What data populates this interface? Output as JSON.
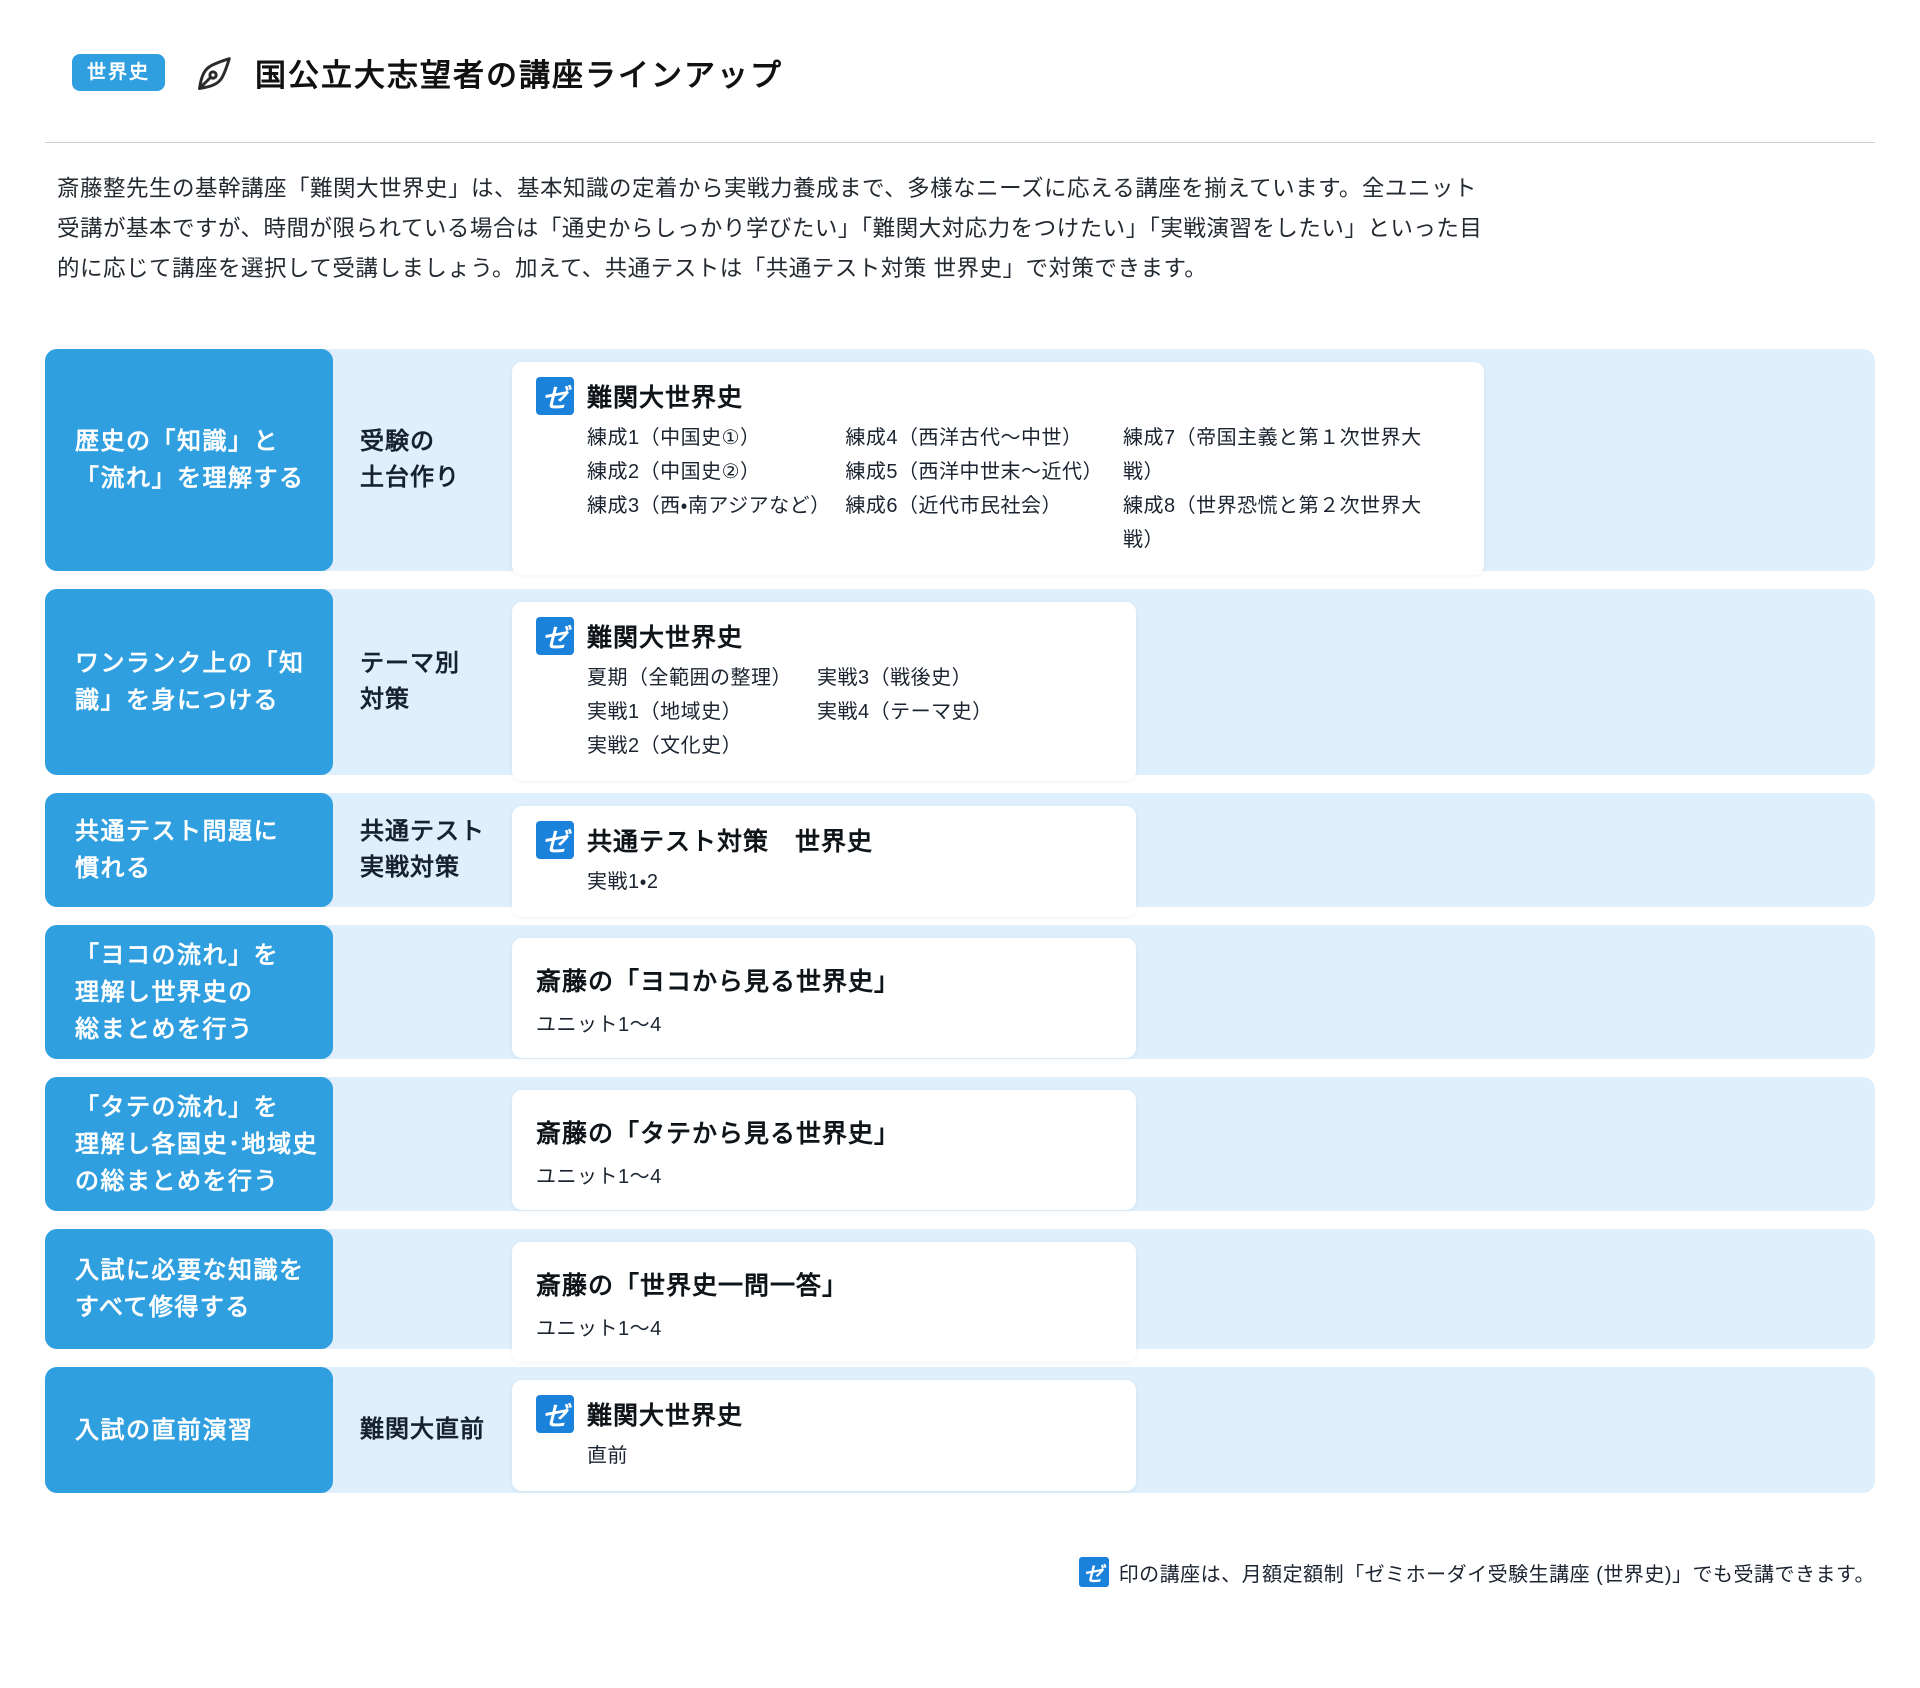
{
  "zemi_glyph": "ゼ",
  "colors": {
    "accent_blue": "#2f9fe0",
    "band_blue": "#dfeffb",
    "logo_blue": "#1b82dc"
  },
  "header": {
    "badge": "世界史",
    "icon": "pen-nib-icon",
    "title": "国公立大志望者の講座ラインアップ"
  },
  "intro": {
    "text": "斎藤整先生の基幹講座「難関大世界史」は、基本知識の定着から実戦力養成まで、多様なニーズに応える講座を揃えています。全ユニット受講が基本ですが、時間が限られている場合は「通史からしっかり学びたい」「難関大対応力をつけたい」「実戦演習をしたい」といった目的に応じて講座を選択して受講しましょう。加えて、共通テストは「共通テスト対策 世界史」で対策できます。"
  },
  "rows": [
    {
      "goal_lines": [
        "歴史の「知識」と",
        "「流れ」を理解する"
      ],
      "category_lines": [
        "受験の",
        "土台作り"
      ],
      "card": {
        "zemi_icon": true,
        "title": "難関大世界史",
        "columns": [
          [
            "練成1（中国史①）",
            "練成2（中国史②）",
            "練成3（西・南アジアなど）"
          ],
          [
            "練成4（西洋古代〜中世）",
            "練成5（西洋中世末〜近代）",
            "練成6（近代市民社会）"
          ],
          [
            "練成7（帝国主義と第１次世界大戦）",
            "練成8（世界恐慌と第２次世界大戦）"
          ]
        ]
      }
    },
    {
      "goal_lines": [
        "ワンランク上の「知",
        "識」を身につける"
      ],
      "category_lines": [
        "テーマ別",
        "対策"
      ],
      "card": {
        "zemi_icon": true,
        "title": "難関大世界史",
        "columns": [
          [
            "夏期（全範囲の整理）",
            "実戦1（地域史）",
            "実戦2（文化史）"
          ],
          [
            "実戦3（戦後史）",
            "実戦4（テーマ史）"
          ]
        ]
      }
    },
    {
      "goal_lines": [
        "共通テスト問題に",
        "慣れる"
      ],
      "category_lines": [
        "共通テスト",
        "実戦対策"
      ],
      "card": {
        "zemi_icon": true,
        "title": "共通テスト対策　世界史",
        "columns": [
          [
            "実戦1・2"
          ]
        ]
      }
    },
    {
      "goal_lines": [
        "「ヨコの流れ」を",
        "理解し世界史の",
        "総まとめを行う"
      ],
      "category_lines": [],
      "card": {
        "zemi_icon": false,
        "title": "斎藤の「ヨコから見る世界史」",
        "columns": [
          [
            "ユニット1〜4"
          ]
        ]
      }
    },
    {
      "goal_lines": [
        "「タテの流れ」を",
        "理解し各国史･地域史",
        "の総まとめを行う"
      ],
      "category_lines": [],
      "card": {
        "zemi_icon": false,
        "title": "斎藤の「タテから見る世界史」",
        "columns": [
          [
            "ユニット1〜4"
          ]
        ]
      }
    },
    {
      "goal_lines": [
        "入試に必要な知識を",
        "すべて修得する"
      ],
      "category_lines": [],
      "card": {
        "zemi_icon": false,
        "title": "斎藤の「世界史一問一答」",
        "columns": [
          [
            "ユニット1〜4"
          ]
        ]
      }
    },
    {
      "goal_lines": [
        "入試の直前演習"
      ],
      "category_lines": [
        "難関大直前"
      ],
      "card": {
        "zemi_icon": true,
        "title": "難関大世界史",
        "columns": [
          [
            "直前"
          ]
        ]
      }
    }
  ],
  "footer": {
    "text": "印の講座は、月額定額制「ゼミホーダイ受験生講座 (世界史)」でも受講できます。"
  }
}
